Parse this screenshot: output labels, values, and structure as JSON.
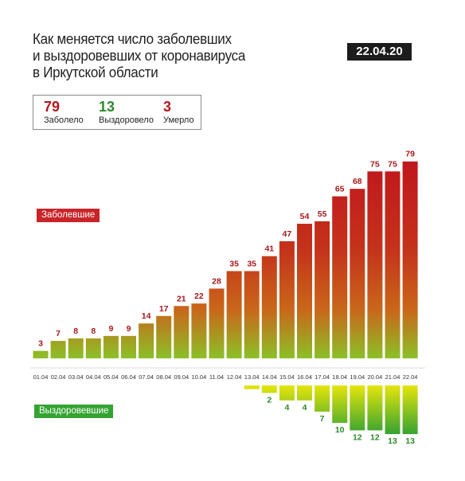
{
  "header": {
    "title_lines": [
      "Как меняется число заболевших",
      "и выздоровевших от коронавируса",
      "в Иркутской области"
    ],
    "date": "22.04.20"
  },
  "stats": {
    "infected": {
      "value": "79",
      "label": "Заболело",
      "color": "#b3191c"
    },
    "recovered": {
      "value": "13",
      "label": "Выздоровело",
      "color": "#2e8a2e"
    },
    "died": {
      "value": "3",
      "label": "Умерло",
      "color": "#b3191c"
    }
  },
  "legend": {
    "infected_label": "Заболевшие",
    "recovered_label": "Выздоровевшие",
    "infected_color": "#c8252a",
    "recovered_color": "#35a331"
  },
  "chart_data": {
    "type": "bar",
    "categories": [
      "01.04",
      "02.04",
      "03.04",
      "04.04",
      "05.04",
      "06.04",
      "07.04",
      "08.04",
      "09.04",
      "10.04",
      "11.04",
      "12.04",
      "13.04",
      "14.04",
      "15.04",
      "16.04",
      "17.04",
      "18.04",
      "19.04",
      "20.04",
      "21.04",
      "22.04"
    ],
    "series": [
      {
        "name": "Заболевшие",
        "values": [
          3,
          7,
          8,
          8,
          9,
          9,
          14,
          17,
          21,
          22,
          28,
          35,
          35,
          41,
          47,
          54,
          55,
          65,
          68,
          75,
          75,
          79
        ],
        "label_color": "#a8191c"
      },
      {
        "name": "Выздоровевшие",
        "values": [
          null,
          null,
          null,
          null,
          null,
          null,
          null,
          null,
          null,
          null,
          null,
          null,
          1,
          2,
          4,
          4,
          7,
          10,
          12,
          12,
          13,
          13
        ],
        "value_labels": [
          null,
          null,
          null,
          null,
          null,
          null,
          null,
          null,
          null,
          null,
          null,
          null,
          "",
          "2",
          "4",
          "4",
          "7",
          "10",
          "12",
          "12",
          "13",
          "13"
        ],
        "label_color": "#2e8a2e"
      }
    ],
    "colors": {
      "bar_top": "#c0161c",
      "bar_mid": "#c9661a",
      "bar_bottom": "#8cc027",
      "rec_top": "#e5e50c",
      "rec_bottom": "#35a331"
    }
  }
}
